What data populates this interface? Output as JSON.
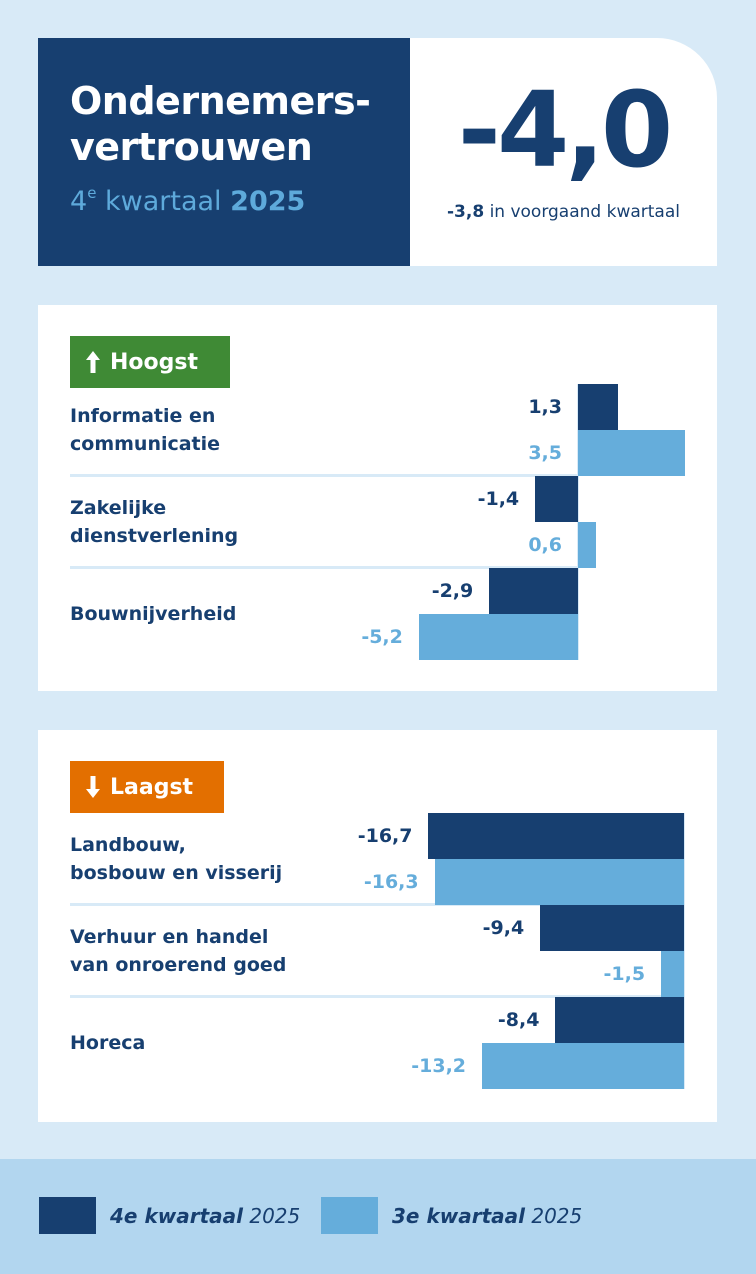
{
  "header": {
    "title_line1": "Ondernemers-",
    "title_line2": "vertrouwen",
    "quarter_number": "4",
    "quarter_sup": "e",
    "quarter_word": "kwartaal",
    "year": "2025",
    "main_value": "-4,0",
    "prev_value": "-3,8",
    "prev_text": "in voorgaand kwartaal"
  },
  "colors": {
    "dark_blue": "#173f70",
    "light_blue": "#65addb",
    "green": "#3f8a35",
    "orange": "#e36f00",
    "background": "#d8eaf7",
    "legend_bg": "#b2d6ef"
  },
  "highest": {
    "badge_label": "Hoogst",
    "icon": "arrow-up-icon"
  },
  "lowest": {
    "badge_label": "Laagst",
    "icon": "arrow-down-icon"
  },
  "legend": [
    {
      "bold": "4e kwartaal",
      "year": "2025",
      "color": "#173f70"
    },
    {
      "bold": "3e kwartaal",
      "year": "2025",
      "color": "#65addb"
    }
  ],
  "chart_data": [
    {
      "type": "bar",
      "title": "Hoogst",
      "orientation": "horizontal",
      "categories": [
        "Informatie en communicatie",
        "Zakelijke dienstverlening",
        "Bouwnijverheid"
      ],
      "series": [
        {
          "name": "4e kwartaal 2025",
          "values": [
            1.3,
            -1.4,
            -2.9
          ],
          "labels": [
            "1,3",
            "-1,4",
            "-2,9"
          ]
        },
        {
          "name": "3e kwartaal 2025",
          "values": [
            3.5,
            0.6,
            -5.2
          ],
          "labels": [
            "3,5",
            "0,6",
            "-5,2"
          ]
        }
      ],
      "grid": false,
      "legend_position": "bottom"
    },
    {
      "type": "bar",
      "title": "Laagst",
      "orientation": "horizontal",
      "categories": [
        "Landbouw, bosbouw en visserij",
        "Verhuur en handel van onroerend goed",
        "Horeca"
      ],
      "series": [
        {
          "name": "4e kwartaal 2025",
          "values": [
            -16.7,
            -9.4,
            -8.4
          ],
          "labels": [
            "-16,7",
            "-9,4",
            "-8,4"
          ]
        },
        {
          "name": "3e kwartaal 2025",
          "values": [
            -16.3,
            -1.5,
            -13.2
          ],
          "labels": [
            "-16,3",
            "-1,5",
            "-13,2"
          ]
        }
      ],
      "grid": false,
      "legend_position": "bottom"
    }
  ],
  "rows_top": [
    {
      "line1": "Informatie en",
      "line2": "communicatie"
    },
    {
      "line1": "Zakelijke",
      "line2": "dienstverlening"
    },
    {
      "line1": "Bouwnijverheid",
      "line2": ""
    }
  ],
  "rows_bottom": [
    {
      "line1": "Landbouw,",
      "line2": "bosbouw en visserij"
    },
    {
      "line1": "Verhuur en handel",
      "line2": "van onroerend goed"
    },
    {
      "line1": "Horeca",
      "line2": ""
    }
  ]
}
